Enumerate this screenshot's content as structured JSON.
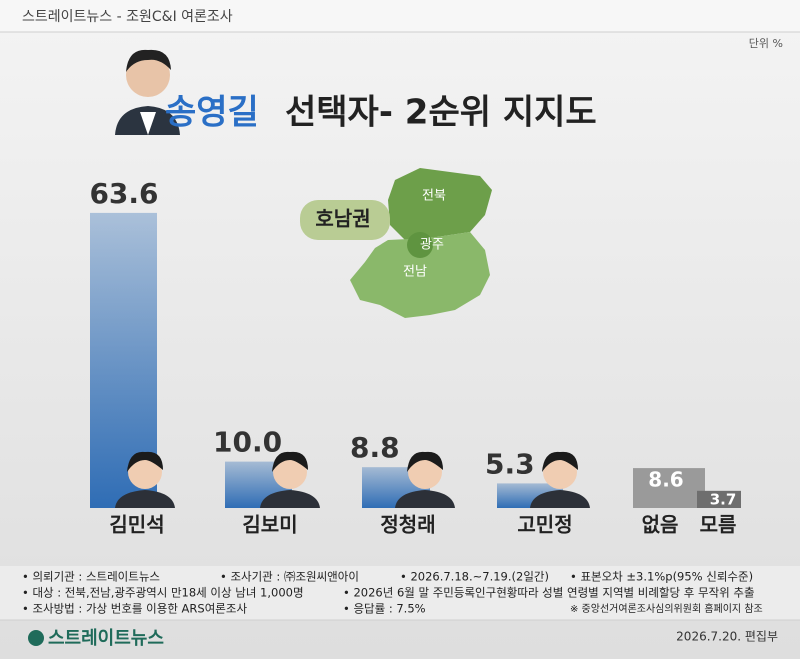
{
  "chart_data": {
    "type": "bar",
    "source": "스트레이트뉴스 - 조원C&I 여론조사",
    "unit": "단위 %",
    "title_highlight": "송영길",
    "title": "선택자- 2순위 지지도",
    "region": "호남권",
    "region_parts": [
      "전북",
      "광주",
      "전남"
    ],
    "categories": [
      "김민석",
      "김보미",
      "정청래",
      "고민정",
      "없음",
      "모름"
    ],
    "values": [
      63.6,
      10.0,
      8.8,
      5.3,
      8.6,
      3.7
    ],
    "value_labels": [
      "63.6",
      "10.0",
      "8.8",
      "5.3",
      "8.6",
      "3.7"
    ],
    "colors": [
      "#2f6db5",
      "#2f6db5",
      "#2f6db5",
      "#2f6db5",
      "#9a9a9a",
      "#6e6e6e"
    ],
    "notes": [
      "• 의뢰기관 : 스트레이트뉴스",
      "• 조사기관 : ㈜조원씨앤아이",
      "• 2026.7.18.~7.19.(2일간)",
      "• 표본오차 ±3.1%p(95% 신뢰수준)",
      "• 대상 : 전북,전남,광주광역시 만18세 이상 남녀 1,000명",
      "• 2026년 6월 말 주민등록인구현황따라 성별 연령별 지역별 비례할당 후 무작위 추출",
      "• 조사방법 : 가상 번호를 이용한 ARS여론조사",
      "• 응답률 : 7.5%",
      "※ 중앙선거여론조사심의위원회 홈페이지 참조"
    ],
    "publisher": "스트레이트뉴스",
    "date_credit": "2026.7.20.  편집부"
  }
}
